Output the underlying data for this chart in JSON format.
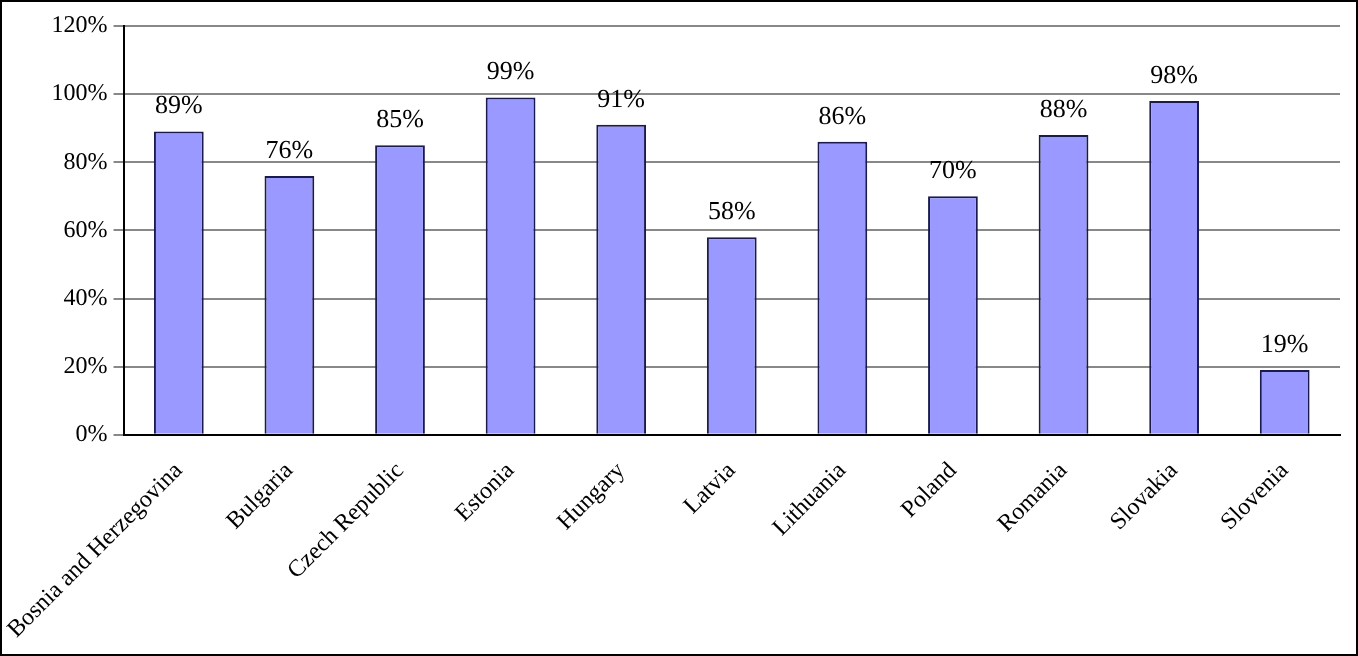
{
  "chart_data": {
    "type": "bar",
    "categories": [
      "Bosnia and Herzegovina",
      "Bulgaria",
      "Czech Republic",
      "Estonia",
      "Hungary",
      "Latvia",
      "Lithuania",
      "Poland",
      "Romania",
      "Slovakia",
      "Slovenia"
    ],
    "values": [
      89,
      76,
      85,
      99,
      91,
      58,
      86,
      70,
      88,
      98,
      19
    ],
    "value_labels": [
      "89%",
      "76%",
      "85%",
      "99%",
      "91%",
      "58%",
      "86%",
      "70%",
      "88%",
      "98%",
      "19%"
    ],
    "color": "#9999ff",
    "ylim": [
      0,
      120
    ],
    "yticks": [
      {
        "value": 0,
        "label": "0%"
      },
      {
        "value": 20,
        "label": "20%"
      },
      {
        "value": 40,
        "label": "40%"
      },
      {
        "value": 60,
        "label": "60%"
      },
      {
        "value": 80,
        "label": "80%"
      },
      {
        "value": 100,
        "label": "100%"
      },
      {
        "value": 120,
        "label": "120%"
      }
    ],
    "grid": "y",
    "legend": false
  }
}
